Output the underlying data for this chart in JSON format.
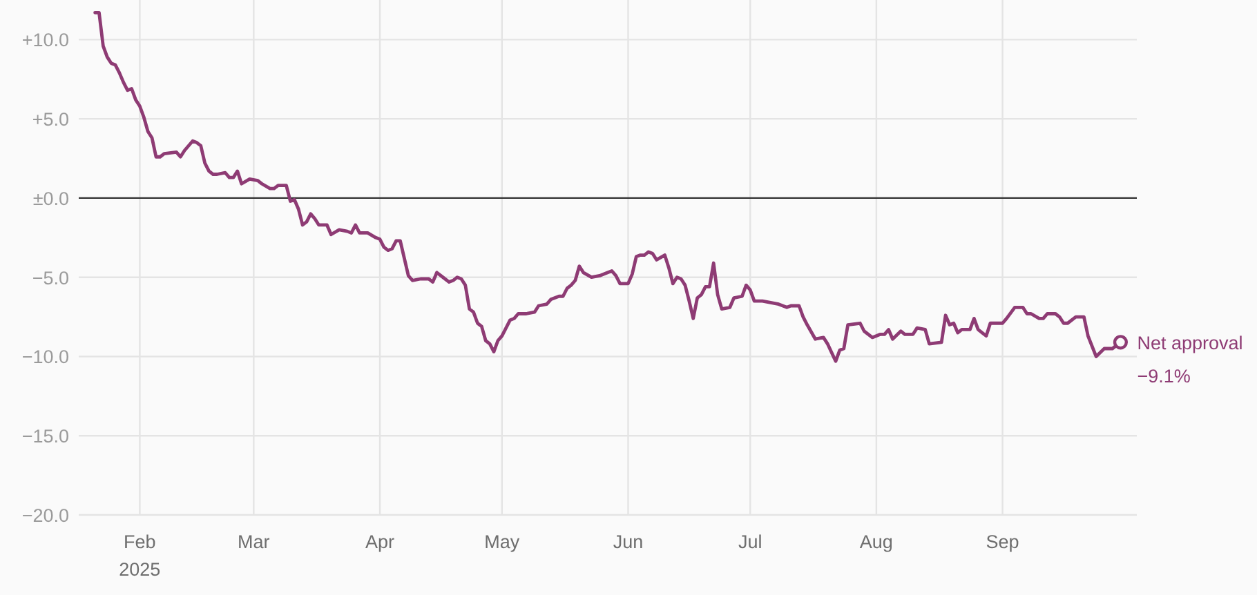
{
  "chart_data": {
    "type": "line",
    "xlim": [
      "2025-01-17",
      "2025-10-04"
    ],
    "ylim": [
      -20,
      12.5
    ],
    "xticks": [
      {
        "value": "2025-02-01",
        "label": "Feb\n2025"
      },
      {
        "value": "2025-03-01",
        "label": "Mar"
      },
      {
        "value": "2025-04-01",
        "label": "Apr"
      },
      {
        "value": "2025-05-01",
        "label": "May"
      },
      {
        "value": "2025-06-01",
        "label": "Jun"
      },
      {
        "value": "2025-07-01",
        "label": "Jul"
      },
      {
        "value": "2025-08-01",
        "label": "Aug"
      },
      {
        "value": "2025-09-01",
        "label": "Sep"
      }
    ],
    "yticks": [
      {
        "value": 10,
        "label": "+10.0"
      },
      {
        "value": 5,
        "label": "+5.0"
      },
      {
        "value": 0,
        "label": "±0.0"
      },
      {
        "value": -5,
        "label": "−5.0"
      },
      {
        "value": -10,
        "label": "−10.0"
      },
      {
        "value": -15,
        "label": "−15.0"
      },
      {
        "value": -20,
        "label": "−20.0"
      }
    ],
    "grid": true,
    "marker": "none",
    "line_style": "solid",
    "ref_lines": [
      {
        "axis": "y",
        "value": 0,
        "color": "#333333"
      }
    ],
    "series": [
      {
        "name": "Net approval",
        "color": "#8e3b74",
        "x": [
          "2025-01-21",
          "2025-01-22",
          "2025-01-23",
          "2025-01-24",
          "2025-01-25",
          "2025-01-26",
          "2025-01-27",
          "2025-01-28",
          "2025-01-29",
          "2025-01-30",
          "2025-01-31",
          "2025-02-01",
          "2025-02-02",
          "2025-02-03",
          "2025-02-04",
          "2025-02-05",
          "2025-02-06",
          "2025-02-07",
          "2025-02-10",
          "2025-02-11",
          "2025-02-12",
          "2025-02-14",
          "2025-02-15",
          "2025-02-16",
          "2025-02-17",
          "2025-02-18",
          "2025-02-19",
          "2025-02-20",
          "2025-02-22",
          "2025-02-23",
          "2025-02-24",
          "2025-02-25",
          "2025-02-26",
          "2025-02-28",
          "2025-03-02",
          "2025-03-03",
          "2025-03-05",
          "2025-03-06",
          "2025-03-07",
          "2025-03-09",
          "2025-03-10",
          "2025-03-11",
          "2025-03-12",
          "2025-03-13",
          "2025-03-14",
          "2025-03-15",
          "2025-03-16",
          "2025-03-17",
          "2025-03-19",
          "2025-03-20",
          "2025-03-22",
          "2025-03-24",
          "2025-03-25",
          "2025-03-26",
          "2025-03-27",
          "2025-03-29",
          "2025-03-31",
          "2025-04-01",
          "2025-04-02",
          "2025-04-03",
          "2025-04-04",
          "2025-04-05",
          "2025-04-06",
          "2025-04-07",
          "2025-04-08",
          "2025-04-09",
          "2025-04-11",
          "2025-04-13",
          "2025-04-14",
          "2025-04-15",
          "2025-04-17",
          "2025-04-18",
          "2025-04-19",
          "2025-04-20",
          "2025-04-21",
          "2025-04-22",
          "2025-04-23",
          "2025-04-24",
          "2025-04-25",
          "2025-04-26",
          "2025-04-27",
          "2025-04-28",
          "2025-04-29",
          "2025-04-30",
          "2025-05-01",
          "2025-05-03",
          "2025-05-04",
          "2025-05-05",
          "2025-05-07",
          "2025-05-09",
          "2025-05-10",
          "2025-05-12",
          "2025-05-13",
          "2025-05-15",
          "2025-05-16",
          "2025-05-17",
          "2025-05-18",
          "2025-05-19",
          "2025-05-20",
          "2025-05-21",
          "2025-05-23",
          "2025-05-25",
          "2025-05-27",
          "2025-05-28",
          "2025-05-29",
          "2025-05-30",
          "2025-06-01",
          "2025-06-02",
          "2025-06-03",
          "2025-06-04",
          "2025-06-05",
          "2025-06-06",
          "2025-06-07",
          "2025-06-08",
          "2025-06-10",
          "2025-06-11",
          "2025-06-12",
          "2025-06-13",
          "2025-06-14",
          "2025-06-15",
          "2025-06-16",
          "2025-06-17",
          "2025-06-18",
          "2025-06-19",
          "2025-06-20",
          "2025-06-21",
          "2025-06-22",
          "2025-06-23",
          "2025-06-24",
          "2025-06-26",
          "2025-06-27",
          "2025-06-29",
          "2025-06-30",
          "2025-07-01",
          "2025-07-02",
          "2025-07-04",
          "2025-07-06",
          "2025-07-08",
          "2025-07-10",
          "2025-07-11",
          "2025-07-13",
          "2025-07-14",
          "2025-07-15",
          "2025-07-17",
          "2025-07-19",
          "2025-07-20",
          "2025-07-22",
          "2025-07-23",
          "2025-07-24",
          "2025-07-25",
          "2025-07-28",
          "2025-07-29",
          "2025-07-31",
          "2025-08-02",
          "2025-08-03",
          "2025-08-04",
          "2025-08-05",
          "2025-08-07",
          "2025-08-08",
          "2025-08-10",
          "2025-08-11",
          "2025-08-13",
          "2025-08-14",
          "2025-08-17",
          "2025-08-18",
          "2025-08-19",
          "2025-08-20",
          "2025-08-21",
          "2025-08-22",
          "2025-08-24",
          "2025-08-25",
          "2025-08-26",
          "2025-08-27",
          "2025-08-28",
          "2025-08-29",
          "2025-09-01",
          "2025-09-02",
          "2025-09-04",
          "2025-09-06",
          "2025-09-07",
          "2025-09-08",
          "2025-09-10",
          "2025-09-11",
          "2025-09-12",
          "2025-09-14",
          "2025-09-15",
          "2025-09-16",
          "2025-09-17",
          "2025-09-19",
          "2025-09-21",
          "2025-09-22",
          "2025-09-24",
          "2025-09-26",
          "2025-09-28",
          "2025-09-30"
        ],
        "values": [
          11.7,
          11.7,
          9.6,
          8.9,
          8.5,
          8.4,
          7.9,
          7.3,
          6.8,
          6.9,
          6.2,
          5.8,
          5.1,
          4.2,
          3.8,
          2.6,
          2.6,
          2.8,
          2.9,
          2.6,
          3.0,
          3.6,
          3.5,
          3.3,
          2.2,
          1.7,
          1.5,
          1.5,
          1.6,
          1.3,
          1.3,
          1.7,
          0.9,
          1.2,
          1.1,
          0.9,
          0.6,
          0.6,
          0.8,
          0.8,
          -0.2,
          -0.1,
          -0.7,
          -1.7,
          -1.5,
          -1.0,
          -1.3,
          -1.7,
          -1.7,
          -2.3,
          -2.0,
          -2.1,
          -2.2,
          -1.7,
          -2.2,
          -2.2,
          -2.5,
          -2.6,
          -3.1,
          -3.3,
          -3.2,
          -2.7,
          -2.7,
          -3.8,
          -4.9,
          -5.2,
          -5.1,
          -5.1,
          -5.3,
          -4.7,
          -5.1,
          -5.3,
          -5.2,
          -5.0,
          -5.1,
          -5.5,
          -7.0,
          -7.2,
          -7.9,
          -8.1,
          -9.0,
          -9.2,
          -9.7,
          -9.0,
          -8.7,
          -7.7,
          -7.6,
          -7.3,
          -7.3,
          -7.2,
          -6.8,
          -6.7,
          -6.4,
          -6.2,
          -6.2,
          -5.7,
          -5.5,
          -5.2,
          -4.3,
          -4.7,
          -5.0,
          -4.9,
          -4.7,
          -4.6,
          -4.9,
          -5.4,
          -5.4,
          -4.8,
          -3.7,
          -3.6,
          -3.6,
          -3.4,
          -3.5,
          -3.9,
          -3.6,
          -4.4,
          -5.4,
          -5.0,
          -5.1,
          -5.5,
          -6.5,
          -7.6,
          -6.3,
          -6.1,
          -5.6,
          -5.6,
          -4.1,
          -6.1,
          -7.0,
          -6.9,
          -6.3,
          -6.2,
          -5.5,
          -5.8,
          -6.5,
          -6.5,
          -6.6,
          -6.7,
          -6.9,
          -6.8,
          -6.8,
          -7.5,
          -8.0,
          -8.9,
          -8.8,
          -9.2,
          -10.3,
          -9.6,
          -9.5,
          -8.0,
          -7.9,
          -8.4,
          -8.8,
          -8.6,
          -8.6,
          -8.3,
          -8.9,
          -8.4,
          -8.6,
          -8.6,
          -8.2,
          -8.3,
          -9.2,
          -9.1,
          -7.4,
          -8.0,
          -7.9,
          -8.5,
          -8.3,
          -8.3,
          -7.6,
          -8.3,
          -8.5,
          -8.7,
          -7.9,
          -7.9,
          -7.6,
          -6.9,
          -6.9,
          -7.3,
          -7.3,
          -7.6,
          -7.6,
          -7.3,
          -7.3,
          -7.5,
          -7.9,
          -7.9,
          -7.5,
          -7.5,
          -8.7,
          -10.0,
          -9.5,
          -9.5,
          -9.1
        ]
      },
      {
        "type": "scatter",
        "color": "#8e3b74",
        "marker": "circle",
        "x": [
          "2025-09-30"
        ],
        "values": [
          -9.1
        ]
      }
    ],
    "annotations": [
      {
        "text": "−9.1%",
        "x": "2025-09-30",
        "y": -9.1
      }
    ]
  }
}
